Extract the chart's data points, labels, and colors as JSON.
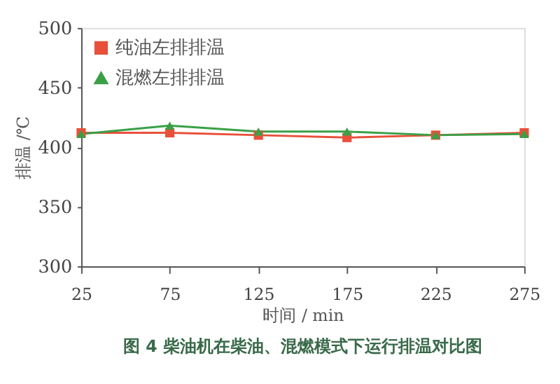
{
  "chart_data": {
    "type": "line",
    "xlabel": "时间 / min",
    "ylabel": "排温 /℃",
    "x": [
      25,
      75,
      125,
      175,
      225,
      275
    ],
    "series": [
      {
        "name": "纯油左排排温",
        "color": "#e8503a",
        "marker": "square",
        "values": [
          412,
          412,
          410,
          408,
          410,
          412
        ]
      },
      {
        "name": "混燃左排排温",
        "color": "#3aa047",
        "marker": "triangle",
        "values": [
          411,
          418,
          413,
          413,
          410,
          411
        ]
      }
    ],
    "xlim": [
      25,
      275
    ],
    "xticks": [
      25,
      75,
      125,
      175,
      225,
      275
    ],
    "ylim": [
      300,
      500
    ],
    "yticks": [
      300,
      350,
      400,
      450,
      500
    ],
    "grid": false,
    "legend": "top left",
    "annotations": [
      "图 4    柴油机在柴油、混燃模式下运行排温对比图"
    ]
  }
}
